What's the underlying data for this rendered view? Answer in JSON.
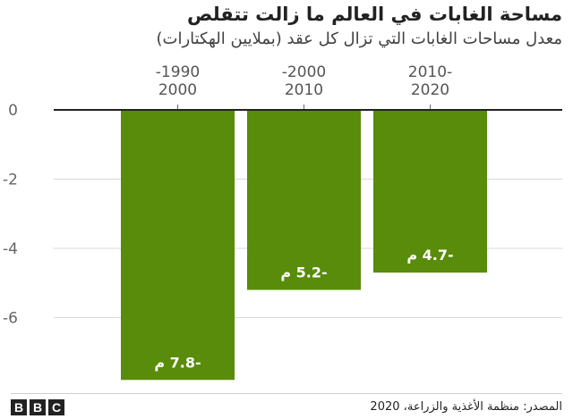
{
  "header": {
    "title": "مساحة الغابات في العالم ما زالت تتقلص",
    "subtitle": "معدل مساحات الغابات التي تزال كل عقد (بملايين الهكتارات)"
  },
  "footer": {
    "source": "المصدر: منظمة الأغذية والزراعة، 2020",
    "logo_letters": [
      "B",
      "B",
      "C"
    ]
  },
  "chart_data": {
    "type": "bar",
    "title": "مساحة الغابات في العالم ما زالت تتقلص",
    "subtitle": "معدل مساحات الغابات التي تزال كل عقد (بملايين الهكتارات)",
    "categories": [
      {
        "line1": "-1990",
        "line2": "2000"
      },
      {
        "line1": "-2000",
        "line2": "2010"
      },
      {
        "line1": "2010-",
        "line2": "2020"
      }
    ],
    "values": [
      -7.8,
      -5.2,
      -4.7
    ],
    "value_labels": [
      "-7.8 م",
      "-5.2 م",
      "-4.7 م"
    ],
    "y_ticks": [
      {
        "value": 0,
        "label": "0"
      },
      {
        "value": -2,
        "label": "2- م"
      },
      {
        "value": -4,
        "label": "4- م"
      },
      {
        "value": -6,
        "label": "6- م"
      }
    ],
    "ylim": [
      -8,
      0
    ],
    "grid": true,
    "bar_color": "#588c0a",
    "label_color": "#ffffff"
  }
}
